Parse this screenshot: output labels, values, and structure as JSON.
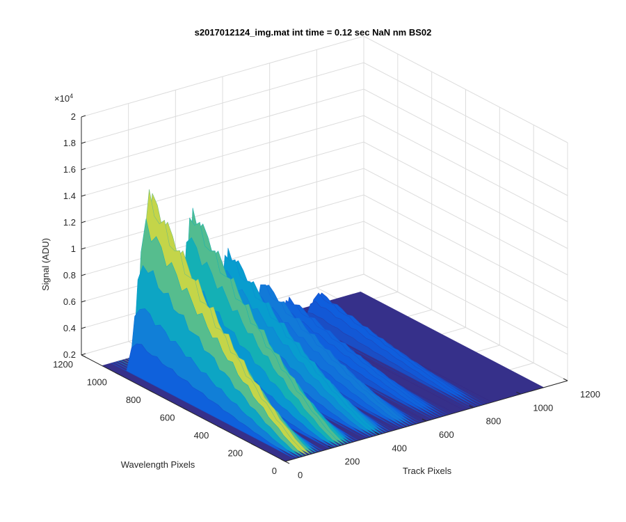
{
  "chart_data": {
    "type": "surface",
    "title": "s2017012124_img.mat int time = 0.12 sec  NaN nm BS02",
    "zlabel": "Signal (ADU)",
    "xlabel": "Track Pixels",
    "ylabel": "Wavelength Pixels",
    "exponent_label": "×10",
    "exponent_power": "4",
    "zlim": [
      0.2,
      2.0
    ],
    "xlim": [
      0,
      1200
    ],
    "ylim": [
      0,
      1200
    ],
    "grid": true,
    "colormap": "parula",
    "z_ticks": [
      "0.2",
      "0.4",
      "0.6",
      "0.8",
      "1",
      "1.2",
      "1.4",
      "1.6",
      "1.8",
      "2"
    ],
    "x_ticks": [
      "0",
      "200",
      "400",
      "600",
      "800",
      "1000",
      "1200"
    ],
    "y_ticks": [
      "0",
      "200",
      "400",
      "600",
      "800",
      "1000",
      "1200"
    ],
    "bands": [
      {
        "track_center": 100,
        "peak": 1.65,
        "wavelength_peak": 950
      },
      {
        "track_center": 250,
        "peak": 1.45,
        "wavelength_peak": 900
      },
      {
        "track_center": 400,
        "peak": 1.05,
        "wavelength_peak": 900
      },
      {
        "track_center": 530,
        "peak": 0.75,
        "wavelength_peak": 880
      },
      {
        "track_center": 660,
        "peak": 0.52,
        "wavelength_peak": 900
      },
      {
        "track_center": 820,
        "peak": 0.45,
        "wavelength_peak": 950
      }
    ]
  }
}
